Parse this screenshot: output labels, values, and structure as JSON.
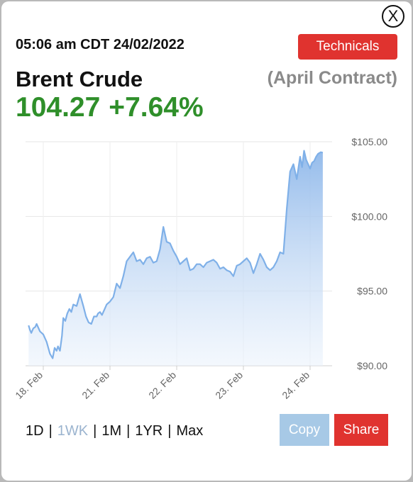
{
  "header": {
    "timestamp": "05:06 am CDT 24/02/2022",
    "close_label": "X",
    "technicals_label": "Technicals"
  },
  "instrument": {
    "name": "Brent Crude",
    "contract": "(April Contract)",
    "price": "104.27",
    "change": "+7.64%"
  },
  "colors": {
    "accent_red": "#e0332f",
    "positive_green": "#2f8f2a",
    "line_blue": "#7fb0e8",
    "copy_blue": "#a7c9e6"
  },
  "chart_data": {
    "type": "area",
    "y_ticks": [
      "$105.00",
      "$100.00",
      "$95.00",
      "$90.00"
    ],
    "y_tick_values": [
      105,
      100,
      95,
      90
    ],
    "x_ticks": [
      "18. Feb",
      "21. Feb",
      "22. Feb",
      "23. Feb",
      "24. Feb"
    ],
    "x_tick_values": [
      0,
      1,
      2,
      3,
      4
    ],
    "ylim": [
      90,
      105
    ],
    "xlim": [
      -0.25,
      4.2
    ],
    "grid": true,
    "series": [
      {
        "values_x": [
          -0.22,
          -0.2,
          -0.18,
          -0.15,
          -0.12,
          -0.1,
          -0.05,
          0,
          0.05,
          0.1,
          0.14,
          0.17,
          0.2,
          0.22,
          0.25,
          0.28,
          0.3,
          0.33,
          0.36,
          0.39,
          0.42,
          0.45,
          0.5,
          0.55,
          0.6,
          0.64,
          0.68,
          0.72,
          0.76,
          0.8,
          0.82,
          0.85,
          0.88,
          0.92,
          0.95,
          1.0,
          1.05,
          1.1,
          1.15,
          1.2,
          1.25,
          1.3,
          1.35,
          1.4,
          1.45,
          1.5,
          1.55,
          1.6,
          1.65,
          1.7,
          1.75,
          1.8,
          1.85,
          1.9,
          1.95,
          2.0,
          2.05,
          2.1,
          2.15,
          2.2,
          2.25,
          2.3,
          2.35,
          2.4,
          2.45,
          2.5,
          2.55,
          2.6,
          2.65,
          2.7,
          2.75,
          2.8,
          2.85,
          2.9,
          2.95,
          3.0,
          3.05,
          3.1,
          3.15,
          3.2,
          3.25,
          3.3,
          3.35,
          3.4,
          3.45,
          3.5,
          3.55,
          3.6,
          3.65,
          3.7,
          3.75,
          3.8,
          3.85,
          3.88,
          3.91,
          3.94,
          3.97,
          4.0,
          4.03,
          4.06,
          4.09,
          4.12,
          4.16,
          4.19
        ],
        "values_y": [
          92.7,
          92.4,
          92.2,
          92.5,
          92.6,
          92.8,
          92.3,
          92.1,
          91.6,
          90.8,
          90.5,
          91.2,
          91.0,
          91.3,
          91.0,
          92.0,
          93.2,
          93.0,
          93.5,
          93.8,
          93.6,
          94.1,
          94.0,
          94.8,
          94.0,
          93.3,
          92.9,
          92.8,
          93.3,
          93.3,
          93.5,
          93.6,
          93.4,
          93.8,
          94.1,
          94.3,
          94.6,
          95.5,
          95.2,
          96.0,
          97.0,
          97.3,
          97.6,
          97.0,
          97.1,
          96.8,
          97.2,
          97.3,
          96.9,
          97.0,
          97.8,
          99.3,
          98.3,
          98.2,
          97.7,
          97.3,
          96.8,
          97.0,
          97.2,
          96.4,
          96.5,
          96.8,
          96.8,
          96.6,
          96.9,
          97.0,
          97.1,
          96.9,
          96.5,
          96.6,
          96.4,
          96.3,
          96.0,
          96.7,
          96.8,
          97.0,
          97.2,
          96.9,
          96.2,
          96.8,
          97.5,
          97.1,
          96.6,
          96.4,
          96.6,
          97.0,
          97.6,
          97.5,
          100.5,
          103.0,
          103.5,
          102.5,
          104.0,
          103.3,
          104.4,
          103.8,
          103.5,
          103.2,
          103.6,
          103.7,
          104.0,
          104.2,
          104.3,
          104.27
        ]
      }
    ]
  },
  "periods": [
    {
      "label": "1D",
      "active": false
    },
    {
      "label": "1WK",
      "active": true
    },
    {
      "label": "1M",
      "active": false
    },
    {
      "label": "1YR",
      "active": false
    },
    {
      "label": "Max",
      "active": false
    }
  ],
  "period_separator": "|",
  "actions": {
    "copy_label": "Copy",
    "share_label": "Share"
  }
}
